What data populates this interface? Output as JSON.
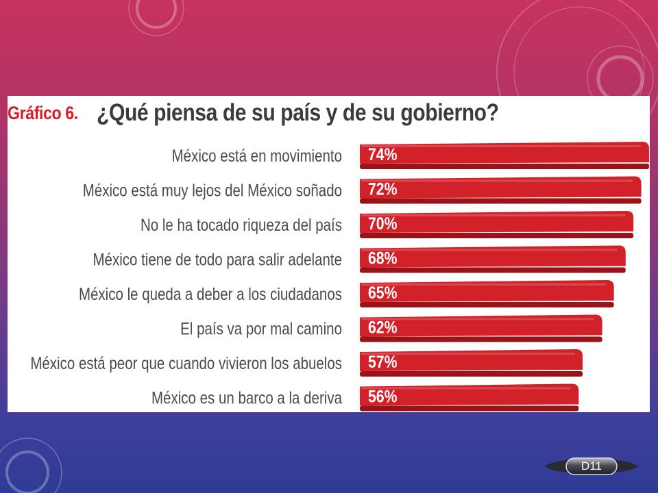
{
  "slide": {
    "badge_label": "D11",
    "colors": {
      "background_top": "#c7335f",
      "background_bottom": "#2f3b96",
      "bar": "#d3212a",
      "bar_shadow": "#9b1219",
      "label_text": "#4a4a4a",
      "title_prefix": "#d3212a",
      "title_main": "#3b3b3b"
    }
  },
  "chart_data": {
    "type": "bar",
    "orientation": "horizontal",
    "title_prefix": "Gráfico 6.",
    "title": "¿Qué piensa de su país y de su gobierno?",
    "categories": [
      "México está en movimiento",
      "México está muy lejos del México soñado",
      "No le ha tocado riqueza del país",
      "México tiene de todo para salir adelante",
      "México le queda a deber a los ciudadanos",
      "El país va por mal camino",
      "México está peor que cuando vivieron los abuelos",
      "México es un barco a la deriva"
    ],
    "values": [
      74,
      72,
      70,
      68,
      65,
      62,
      57,
      56
    ],
    "value_labels": [
      "74%",
      "72%",
      "70%",
      "68%",
      "65%",
      "62%",
      "57%",
      "56%"
    ],
    "unit": "%",
    "grid": false,
    "legend": "none"
  }
}
